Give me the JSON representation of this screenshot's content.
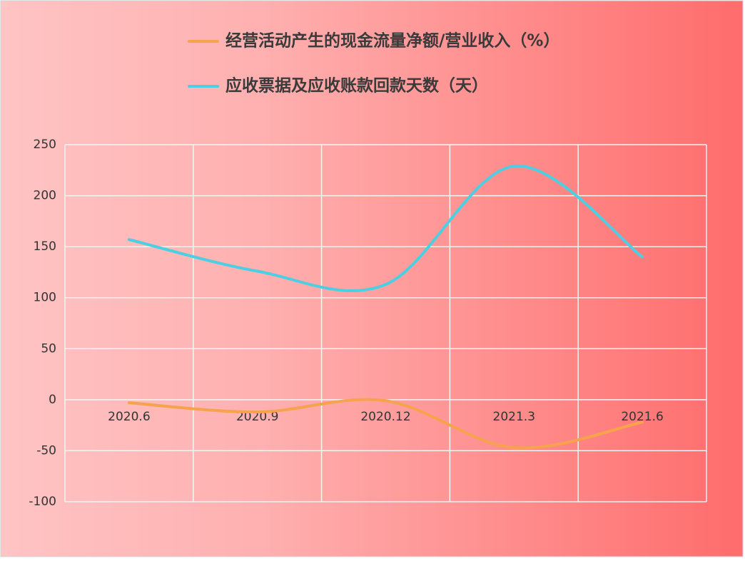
{
  "chart_data": {
    "type": "line",
    "categories": [
      "2020.6",
      "2020.9",
      "2020.12",
      "2021.3",
      "2021.6"
    ],
    "series": [
      {
        "name": "经营活动产生的现金流量净额/营业收入（%）",
        "color": "#f7a24c",
        "values": [
          -3,
          -12,
          -1,
          -47,
          -22
        ]
      },
      {
        "name": "应收票据及应收账款回款天数（天）",
        "color": "#4ccfe3",
        "values": [
          157,
          126,
          113,
          229,
          140
        ]
      }
    ],
    "ylim": [
      -100,
      250
    ],
    "yticks": [
      -100,
      -50,
      0,
      50,
      100,
      150,
      200,
      250
    ],
    "grid": true,
    "legend": "top",
    "smooth": true
  }
}
